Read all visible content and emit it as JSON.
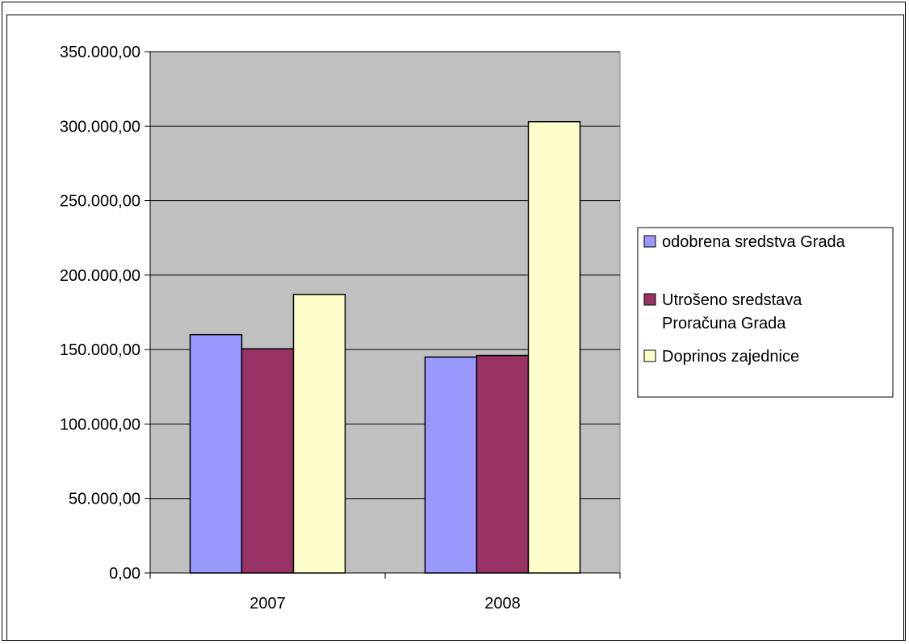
{
  "chart_data": {
    "type": "bar",
    "categories": [
      "2007",
      "2008"
    ],
    "series": [
      {
        "name": "odobrena sredstva Grada",
        "color": "#9999ff",
        "values": [
          160000,
          145000
        ]
      },
      {
        "name": "Utrošeno sredstava Proračuna Grada",
        "color": "#993366",
        "values": [
          150500,
          146000
        ]
      },
      {
        "name": "Doprinos zajednice",
        "color": "#ffffcc",
        "values": [
          187000,
          303000
        ]
      }
    ],
    "y_ticks": [
      "0,00",
      "50.000,00",
      "100.000,00",
      "150.000,00",
      "200.000,00",
      "250.000,00",
      "300.000,00",
      "350.000,00"
    ],
    "ylim": [
      0,
      350000
    ],
    "grid": true,
    "plot_background": "#c0c0c0",
    "legend_position": "right",
    "title": "",
    "xlabel": "",
    "ylabel": ""
  }
}
